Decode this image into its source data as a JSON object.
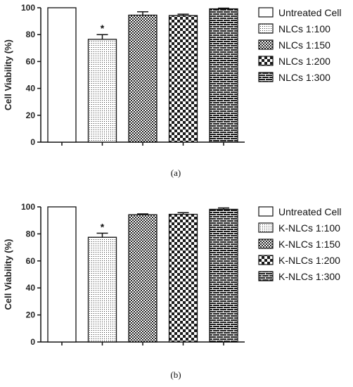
{
  "chart_data": [
    {
      "type": "bar",
      "panel_label": "(a)",
      "ylabel": "Cell Viability (%)",
      "ylim": [
        0,
        100
      ],
      "yticks": [
        "0",
        "20",
        "40",
        "60",
        "80",
        "100"
      ],
      "categories": [
        "Untreated Cell",
        "NLCs 1:100",
        "NLCs 1:150",
        "NLCs 1:200",
        "NLCs 1:300"
      ],
      "values": [
        100,
        76.5,
        94.5,
        94.2,
        99.2
      ],
      "errors": [
        0,
        3.5,
        2.5,
        1.0,
        0.5
      ],
      "significance": [
        "",
        "*",
        "",
        "",
        ""
      ],
      "patterns": [
        "white",
        "dots",
        "dense-check",
        "check",
        "brick"
      ],
      "legend_position": "right"
    },
    {
      "type": "bar",
      "panel_label": "(b)",
      "ylabel": "Cell Viability (%)",
      "ylim": [
        0,
        100
      ],
      "yticks": [
        "0",
        "20",
        "40",
        "60",
        "80",
        "100"
      ],
      "categories": [
        "Untreated Cell",
        "K-NLCs 1:100",
        "K-NLCs 1:150",
        "K-NLCs 1:200",
        "K-NLCs 1:300"
      ],
      "values": [
        100,
        77.5,
        94.2,
        94.5,
        98.2
      ],
      "errors": [
        0,
        3.0,
        0.6,
        1.2,
        1.0
      ],
      "significance": [
        "",
        "*",
        "",
        "",
        ""
      ],
      "patterns": [
        "white",
        "dots",
        "dense-check",
        "check",
        "brick"
      ],
      "legend_position": "right"
    }
  ]
}
